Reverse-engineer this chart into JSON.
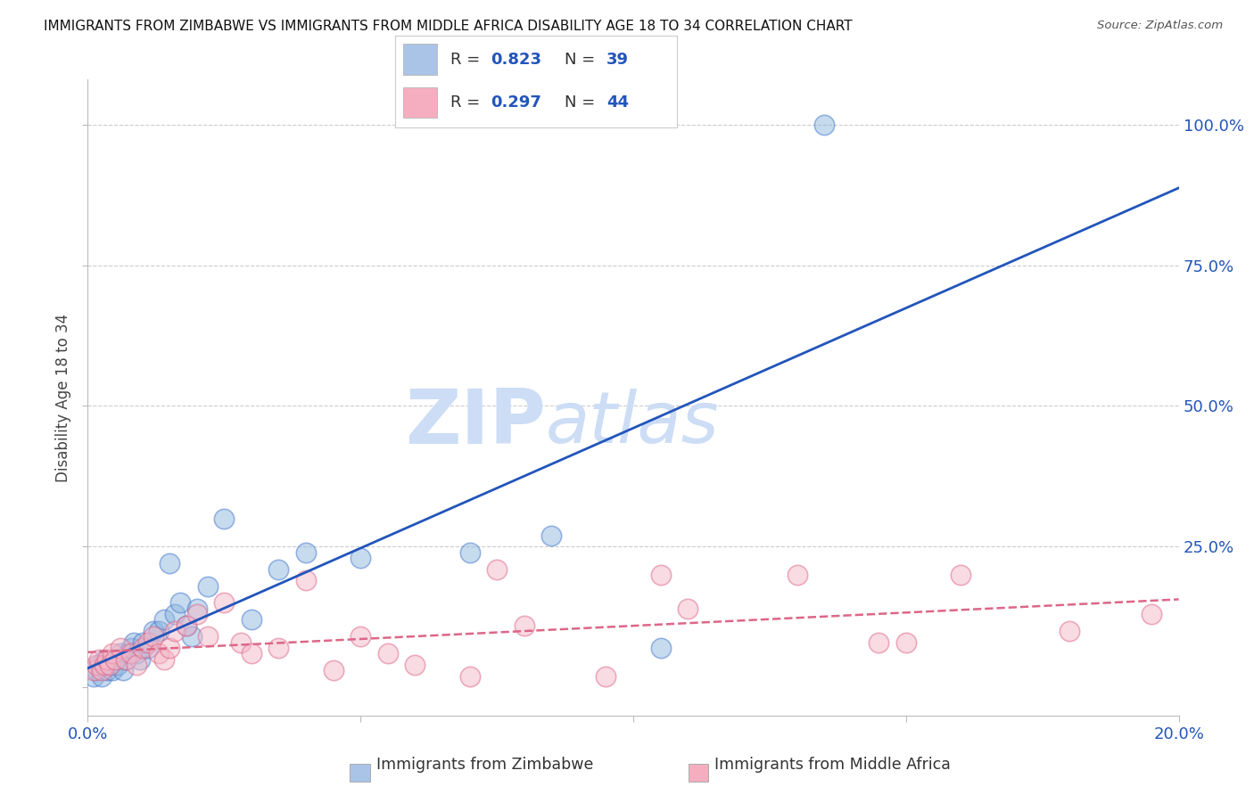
{
  "title": "IMMIGRANTS FROM ZIMBABWE VS IMMIGRANTS FROM MIDDLE AFRICA DISABILITY AGE 18 TO 34 CORRELATION CHART",
  "source": "Source: ZipAtlas.com",
  "ylabel": "Disability Age 18 to 34",
  "xlim": [
    0.0,
    20.0
  ],
  "ylim": [
    -5.0,
    108.0
  ],
  "legend1_R": "0.823",
  "legend1_N": "39",
  "legend2_R": "0.297",
  "legend2_N": "44",
  "legend1_color": "#aac4e8",
  "legend2_color": "#f5aec0",
  "blue_line_color": "#2255bb",
  "pink_line_color": "#dd6688",
  "text_color_blue": "#2255bb",
  "watermark_color": "#ccddf5",
  "scatter_blue_color": "#90b8e0",
  "scatter_blue_edge": "#4477cc",
  "scatter_pink_color": "#f5b8c8",
  "scatter_pink_edge": "#dd6688",
  "blue_points_x": [
    0.1,
    0.15,
    0.2,
    0.25,
    0.3,
    0.35,
    0.4,
    0.45,
    0.5,
    0.55,
    0.6,
    0.65,
    0.7,
    0.75,
    0.8,
    0.85,
    0.9,
    0.95,
    1.0,
    1.1,
    1.2,
    1.3,
    1.4,
    1.5,
    1.6,
    1.7,
    1.8,
    1.9,
    2.0,
    2.2,
    2.5,
    3.0,
    3.5,
    4.0,
    5.0,
    7.0,
    8.5,
    10.5,
    13.5
  ],
  "blue_points_y": [
    2,
    3,
    4,
    2,
    5,
    3,
    4,
    3,
    5,
    4,
    6,
    3,
    5,
    6,
    7,
    8,
    6,
    5,
    8,
    7,
    10,
    10,
    12,
    22,
    13,
    15,
    11,
    9,
    14,
    18,
    30,
    12,
    21,
    24,
    23,
    24,
    27,
    7,
    100
  ],
  "pink_points_x": [
    0.1,
    0.15,
    0.2,
    0.25,
    0.3,
    0.35,
    0.4,
    0.45,
    0.5,
    0.6,
    0.7,
    0.8,
    0.9,
    1.0,
    1.1,
    1.2,
    1.3,
    1.4,
    1.5,
    1.6,
    1.8,
    2.0,
    2.2,
    2.5,
    2.8,
    3.0,
    3.5,
    4.0,
    4.5,
    5.0,
    5.5,
    6.0,
    7.0,
    7.5,
    8.0,
    9.5,
    10.5,
    11.0,
    13.0,
    14.5,
    15.0,
    16.0,
    18.0,
    19.5
  ],
  "pink_points_y": [
    3,
    4,
    5,
    3,
    4,
    5,
    4,
    6,
    5,
    7,
    5,
    6,
    4,
    7,
    8,
    9,
    6,
    5,
    7,
    10,
    11,
    13,
    9,
    15,
    8,
    6,
    7,
    19,
    3,
    9,
    6,
    4,
    2,
    21,
    11,
    2,
    20,
    14,
    20,
    8,
    8,
    20,
    10,
    13
  ],
  "grid_color": "#cccccc",
  "background_color": "#ffffff",
  "axis_color": "#bbbbbb",
  "tick_color_blue": "#2255bb"
}
